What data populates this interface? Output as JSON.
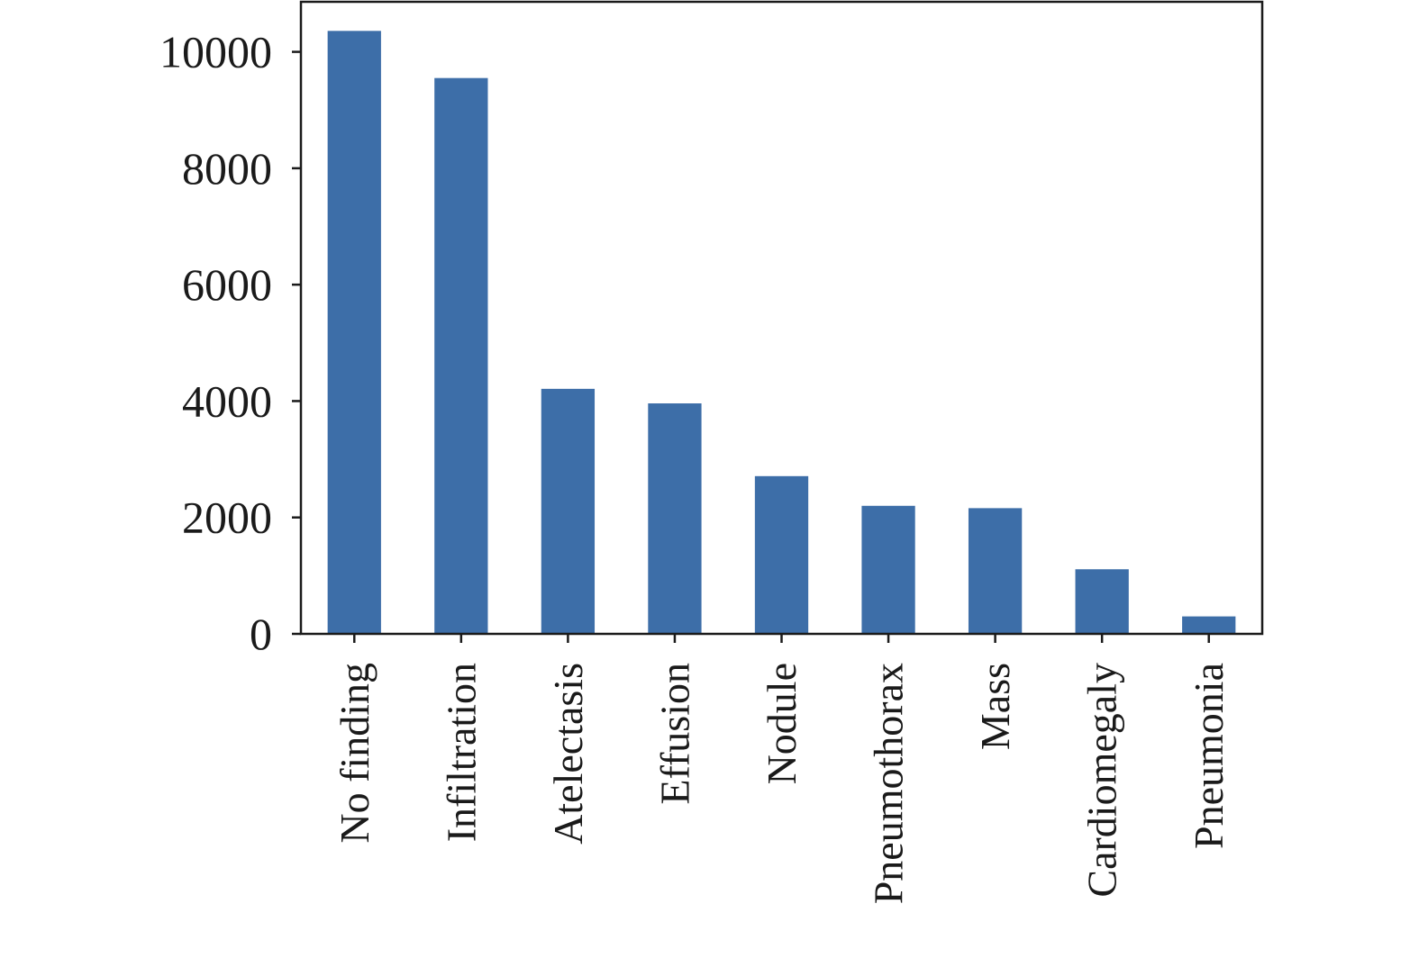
{
  "chart_data": {
    "type": "bar",
    "title": "",
    "xlabel": "",
    "ylabel": "",
    "categories": [
      "No finding",
      "Infiltration",
      "Atelectasis",
      "Effusion",
      "Nodule",
      "Pneumothorax",
      "Mass",
      "Cardiomegaly",
      "Pneumonia"
    ],
    "values": [
      10360,
      9550,
      4210,
      3960,
      2710,
      2200,
      2160,
      1110,
      300
    ],
    "ylim": [
      0,
      10860
    ],
    "yticks": [
      0,
      2000,
      4000,
      6000,
      8000,
      10000
    ],
    "ytick_labels": [
      "0",
      "2000",
      "4000",
      "6000",
      "8000",
      "10000"
    ],
    "grid": false,
    "legend": "none",
    "bar_color": "#3d6ea8",
    "axis_color": "#1a1a1a"
  }
}
